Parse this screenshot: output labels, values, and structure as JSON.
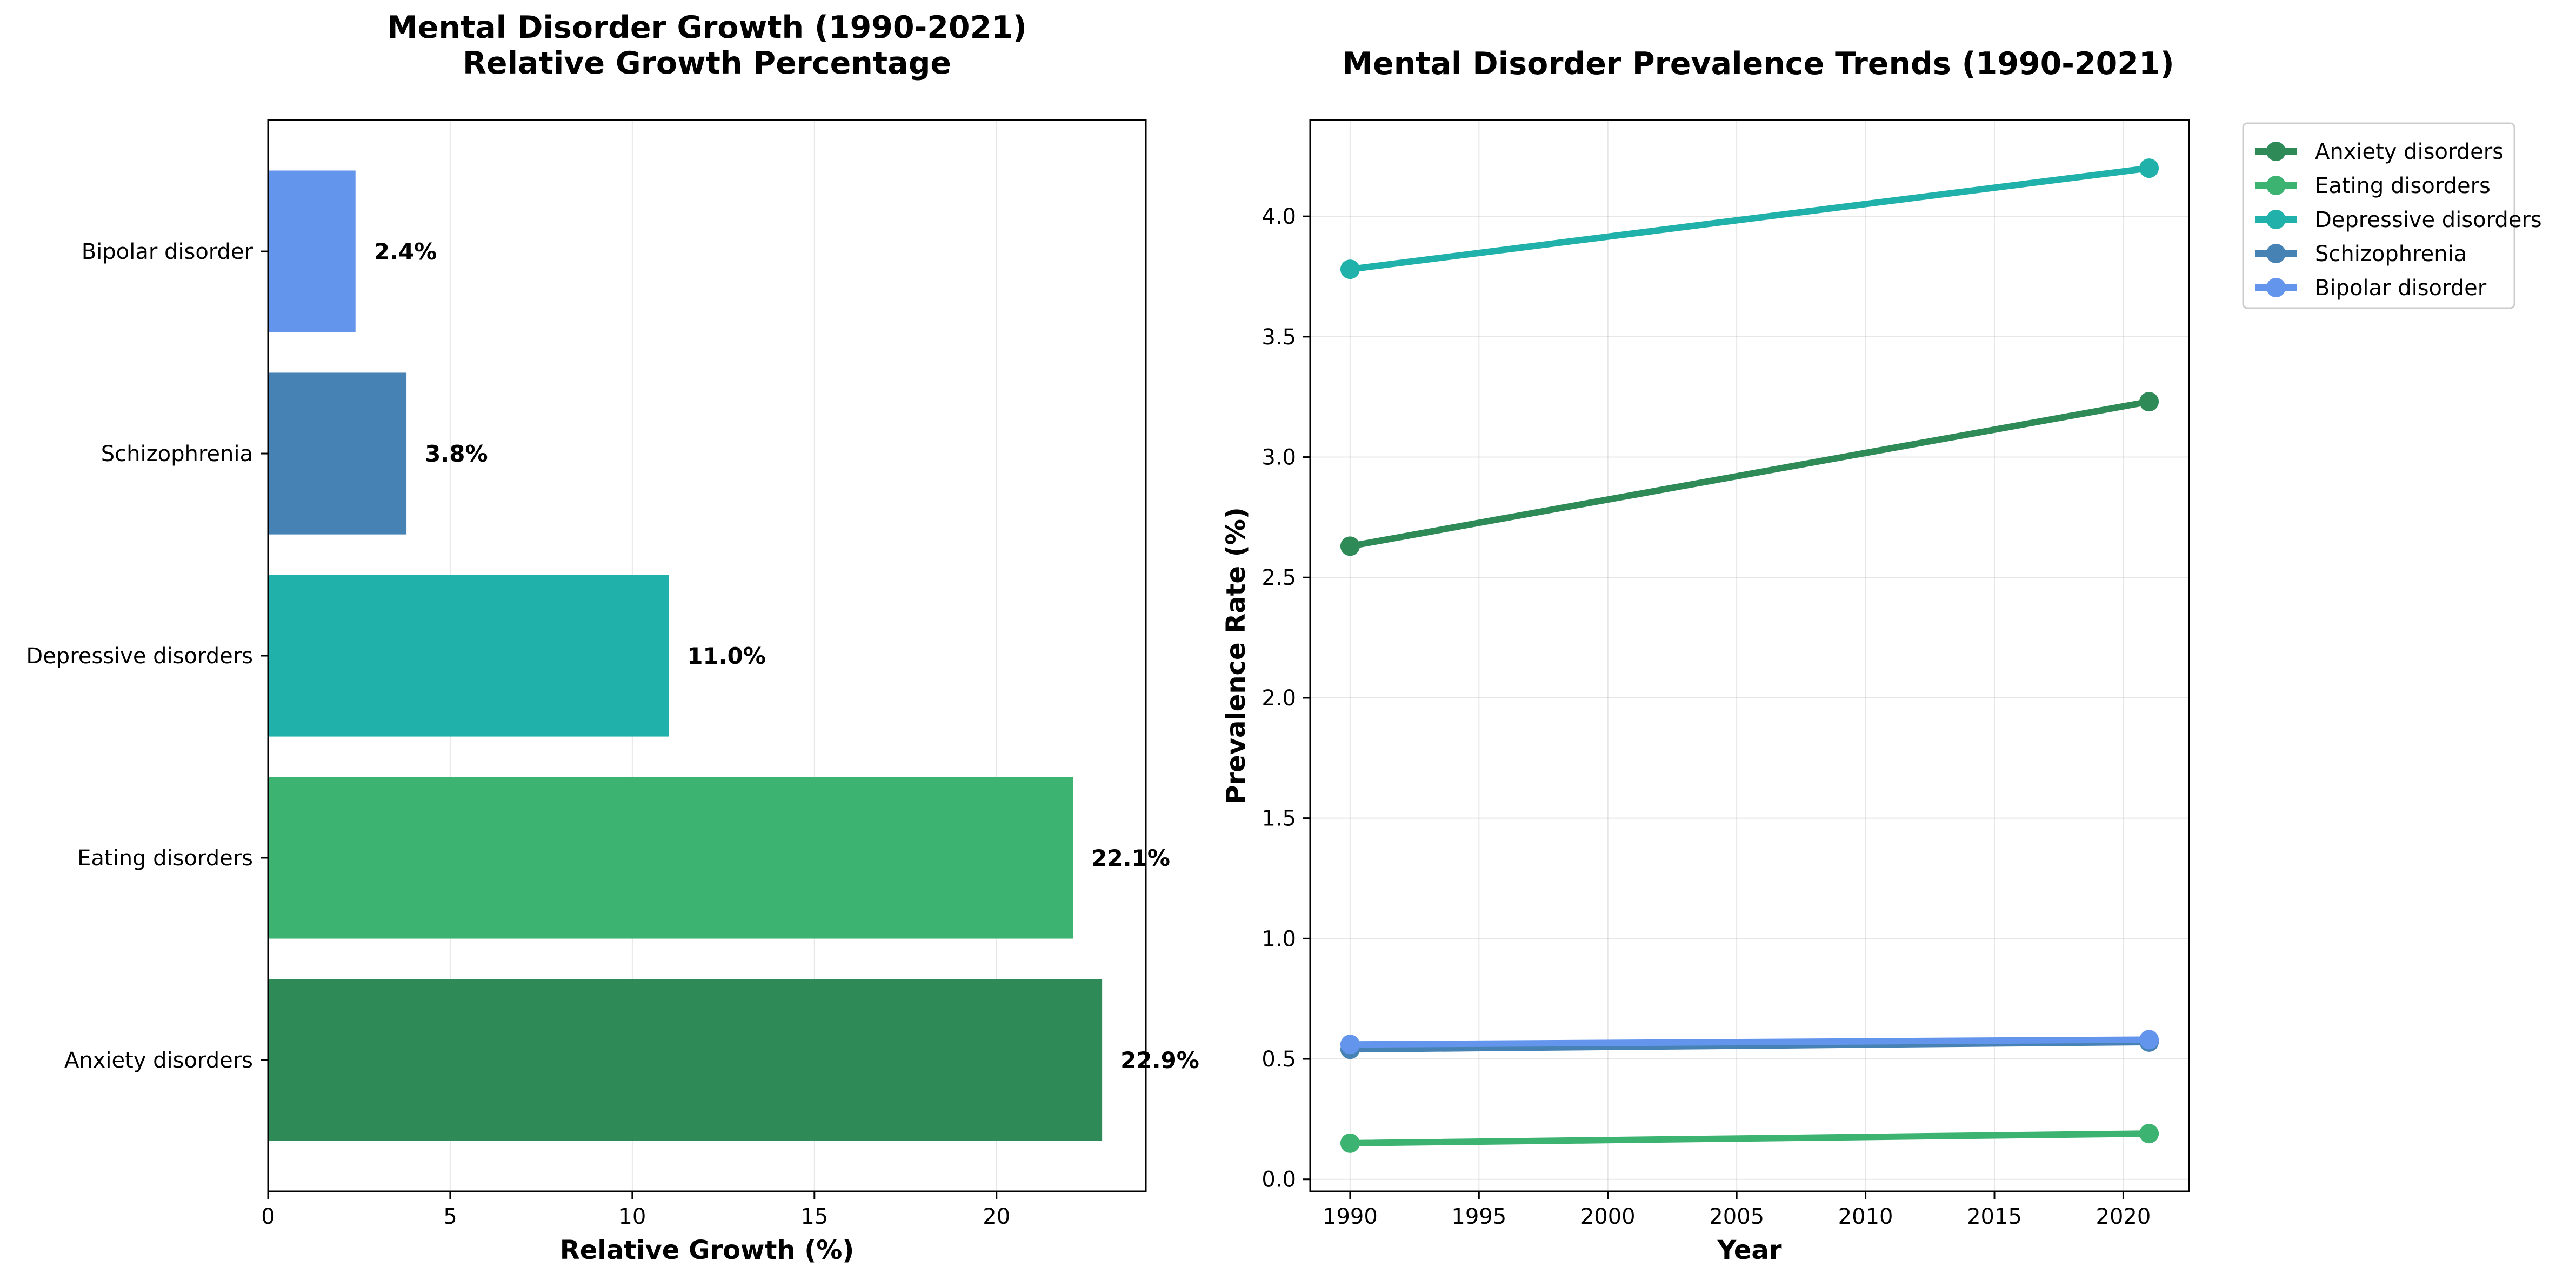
{
  "chart_data": [
    {
      "type": "bar",
      "orientation": "horizontal",
      "title": "Mental Disorder Growth (1990-2021)",
      "subtitle": "Relative Growth Percentage",
      "xlabel": "Relative Growth (%)",
      "ylabel": "",
      "xlim": [
        0,
        24.1
      ],
      "xticks": [
        0,
        5,
        10,
        15,
        20
      ],
      "grid": true,
      "categories": [
        "Anxiety disorders",
        "Eating disorders",
        "Depressive disorders",
        "Schizophrenia",
        "Bipolar disorder"
      ],
      "values": [
        22.9,
        22.1,
        11.0,
        3.8,
        2.4
      ],
      "value_labels": [
        "22.9%",
        "22.1%",
        "11.0%",
        "3.8%",
        "2.4%"
      ],
      "colors": [
        "#2e8b57",
        "#3cb371",
        "#20b2aa",
        "#4682b4",
        "#6495ed"
      ]
    },
    {
      "type": "line",
      "title": "Mental Disorder Prevalence Trends (1990-2021)",
      "xlabel": "Year",
      "ylabel": "Prevalence Rate (%)",
      "xlim": [
        1988.45,
        2022.55
      ],
      "ylim": [
        -0.05,
        4.4
      ],
      "xticks": [
        1990,
        1995,
        2000,
        2005,
        2010,
        2015,
        2020
      ],
      "yticks": [
        "0.0",
        "0.5",
        "1.0",
        "1.5",
        "2.0",
        "2.5",
        "3.0",
        "3.5",
        "4.0"
      ],
      "grid": true,
      "legend_position": "outside-top-right",
      "x": [
        1990,
        2021
      ],
      "series": [
        {
          "name": "Anxiety disorders",
          "values": [
            2.63,
            3.23
          ],
          "color": "#2e8b57"
        },
        {
          "name": "Eating disorders",
          "values": [
            0.15,
            0.19
          ],
          "color": "#3cb371"
        },
        {
          "name": "Depressive disorders",
          "values": [
            3.78,
            4.2
          ],
          "color": "#20b2aa"
        },
        {
          "name": "Schizophrenia",
          "values": [
            0.54,
            0.57
          ],
          "color": "#4682b4"
        },
        {
          "name": "Bipolar disorder",
          "values": [
            0.56,
            0.58
          ],
          "color": "#6495ed"
        }
      ]
    }
  ]
}
